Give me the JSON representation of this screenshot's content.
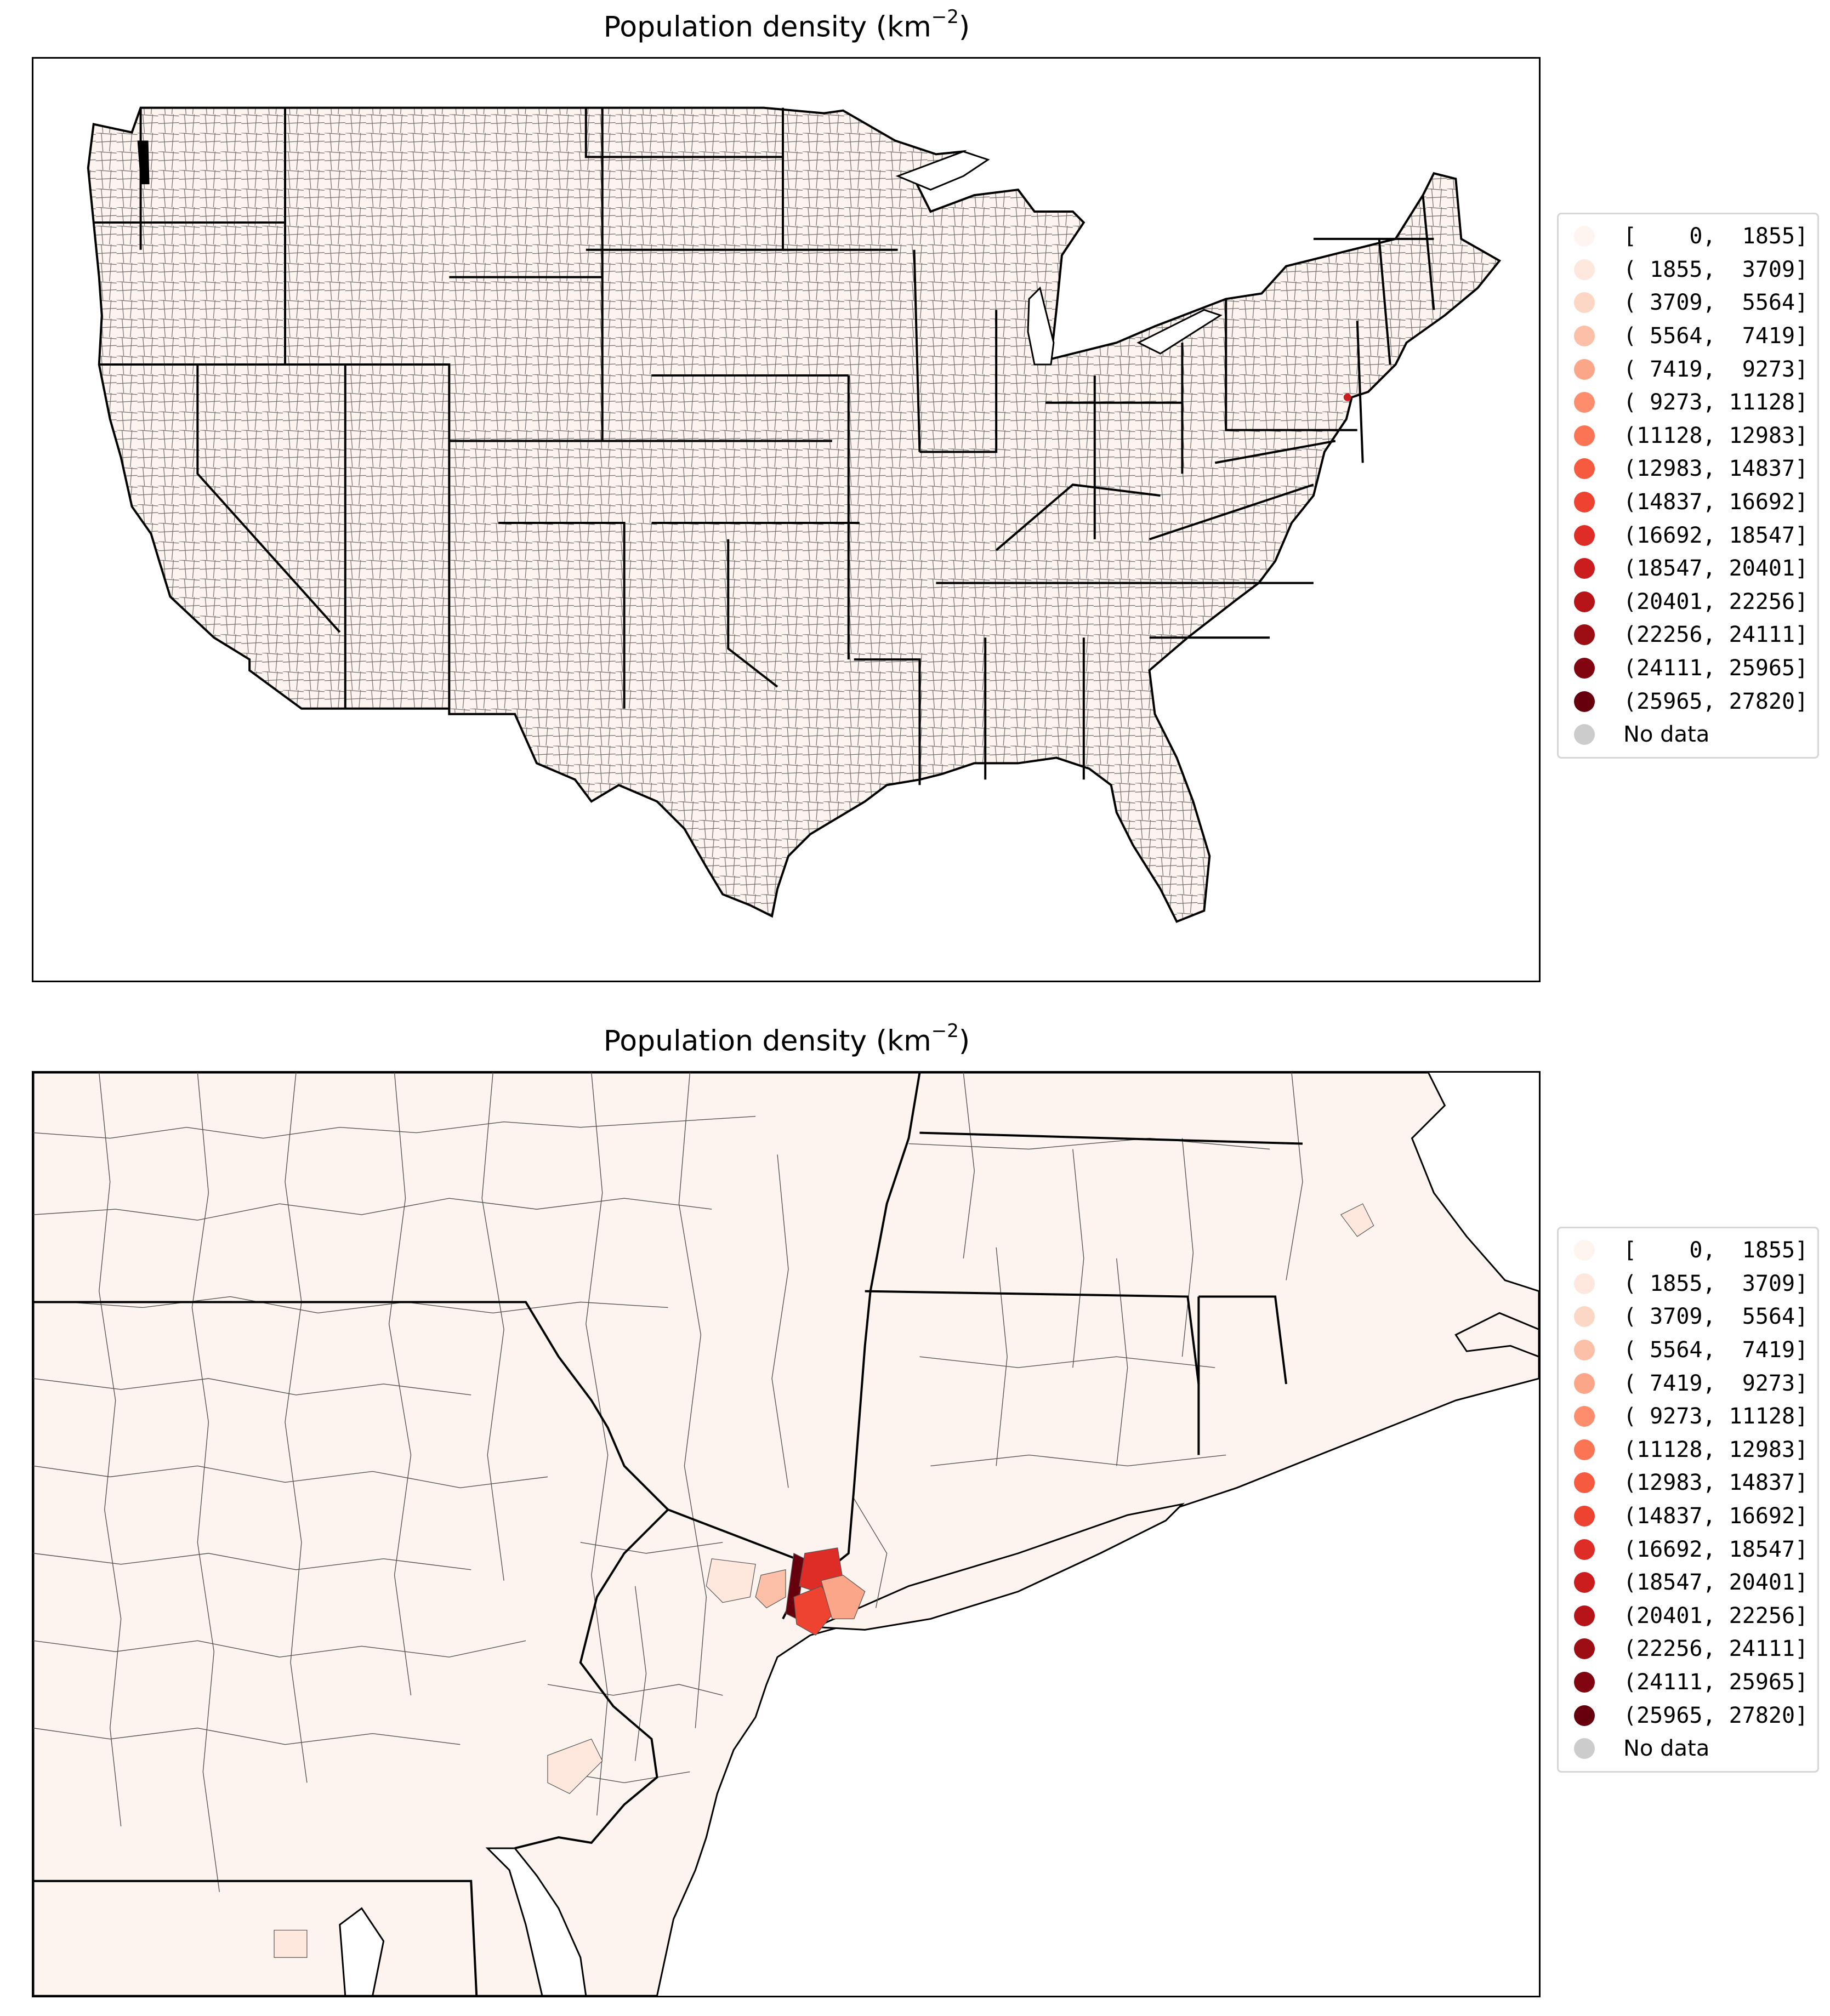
{
  "colors": {
    "county_fill": "#fdf3ef",
    "state_border": "#000000",
    "county_border": "#555555",
    "no_data": "#cccccc"
  },
  "panels": [
    {
      "title_main": "Population density (km",
      "title_exp": "−2",
      "title_close": ")",
      "region": "contiguous-us"
    },
    {
      "title_main": "Population density (km",
      "title_exp": "−2",
      "title_close": ")",
      "region": "new-york-metro"
    }
  ],
  "legend": {
    "bins": [
      {
        "label": "[    0,  1855]",
        "color": "#fff5f0"
      },
      {
        "label": "( 1855,  3709]",
        "color": "#fee8dd"
      },
      {
        "label": "( 3709,  5564]",
        "color": "#fdd7c6"
      },
      {
        "label": "( 5564,  7419]",
        "color": "#fcbfa7"
      },
      {
        "label": "( 7419,  9273]",
        "color": "#fca689"
      },
      {
        "label": "( 9273, 11128]",
        "color": "#fc8e6e"
      },
      {
        "label": "(11128, 12983]",
        "color": "#fb7555"
      },
      {
        "label": "(12983, 14837]",
        "color": "#f65b40"
      },
      {
        "label": "(14837, 16692]",
        "color": "#ee4331"
      },
      {
        "label": "(16692, 18547]",
        "color": "#de2d26"
      },
      {
        "label": "(18547, 20401]",
        "color": "#cb1d1e"
      },
      {
        "label": "(20401, 22256]",
        "color": "#b61419"
      },
      {
        "label": "(22256, 24111]",
        "color": "#9d0d14"
      },
      {
        "label": "(24111, 25965]",
        "color": "#810510"
      },
      {
        "label": "(25965, 27820]",
        "color": "#67000d"
      }
    ],
    "no_data": {
      "label": "No data",
      "color": "#cccccc"
    }
  }
}
